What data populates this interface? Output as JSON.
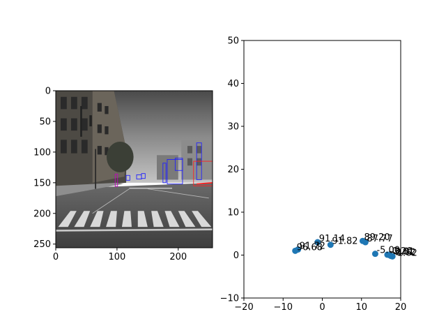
{
  "chart_data": [
    {
      "type": "image",
      "xlim": [
        0,
        256
      ],
      "ylim": [
        256,
        0
      ],
      "xticks": [
        0,
        100,
        200
      ],
      "yticks": [
        0,
        50,
        100,
        150,
        200,
        250
      ],
      "grid": false,
      "image_description_colors": {
        "sky": "#6e6e6e",
        "road": "#555555",
        "crosswalk": "#d8d8d8",
        "box_blue": "#1f1fff",
        "box_red": "#ff2020",
        "box_magenta": "#c000c0"
      }
    },
    {
      "type": "scatter",
      "xlim": [
        -20,
        20
      ],
      "ylim": [
        -10,
        50
      ],
      "xticks": [
        -20,
        -10,
        0,
        10,
        20
      ],
      "yticks": [
        -10,
        0,
        10,
        20,
        30,
        40,
        50
      ],
      "grid": false,
      "marker_color": "#1f77b4",
      "points": [
        {
          "x": -6.9,
          "y": 1.0,
          "label": "96.68"
        },
        {
          "x": -6.2,
          "y": 1.3,
          "label": "91.72"
        },
        {
          "x": -1.2,
          "y": 3.0,
          "label": "91.14"
        },
        {
          "x": 2.1,
          "y": 2.4,
          "label": "91.82"
        },
        {
          "x": 10.3,
          "y": 3.3,
          "label": "89.20"
        },
        {
          "x": 11.0,
          "y": 3.0,
          "label": "87.77"
        },
        {
          "x": 13.5,
          "y": 0.3,
          "label": "-5.00"
        },
        {
          "x": 16.6,
          "y": 0.1,
          "label": "-0.20"
        },
        {
          "x": 17.1,
          "y": 0.0,
          "label": "-3.61"
        },
        {
          "x": 17.5,
          "y": -0.2,
          "label": "-2.02"
        },
        {
          "x": 17.9,
          "y": -0.3,
          "label": "-1.62"
        }
      ]
    }
  ]
}
